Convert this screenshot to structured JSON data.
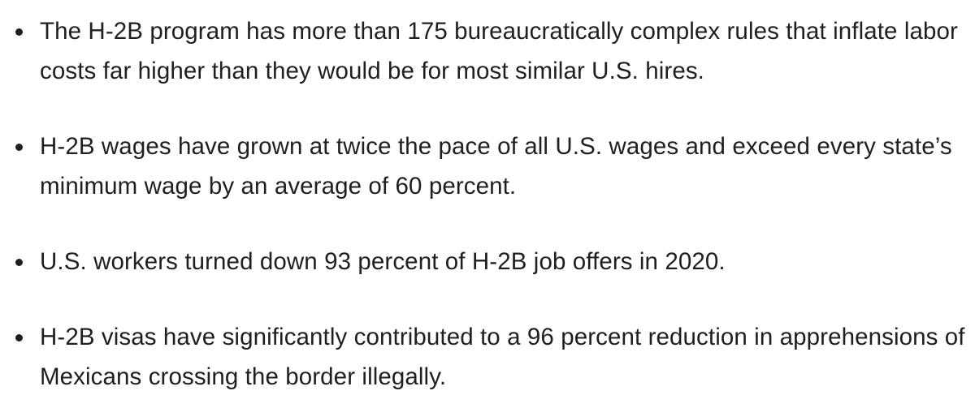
{
  "list": {
    "items": [
      "The H-2B program has more than 175 bureaucratically complex rules that inflate labor costs far higher than they would be for most similar U.S. hires.",
      "H-2B wages have grown at twice the pace of all U.S. wages and exceed every state’s minimum wage by an average of 60 percent.",
      "U.S. workers turned down 93 percent of H-2B job offers in 2020.",
      "H-2B visas have significantly contributed to a 96 percent reduction in apprehensions of Mexicans crossing the border illegally."
    ]
  }
}
